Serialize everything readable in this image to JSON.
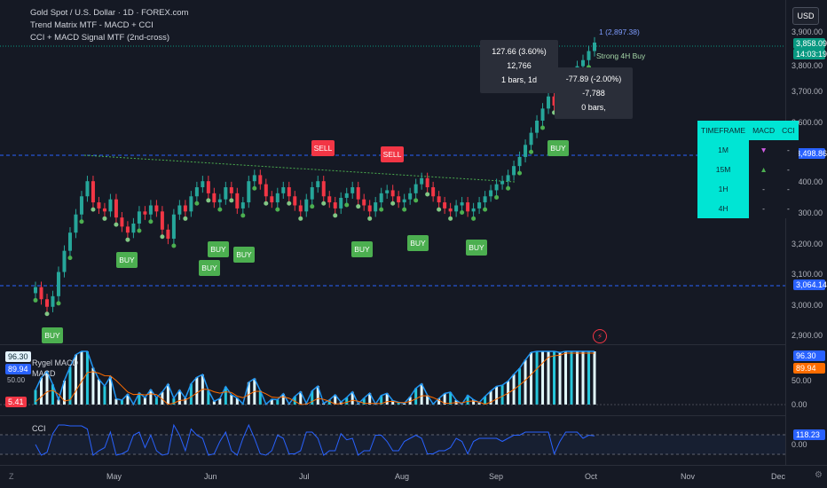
{
  "header": {
    "symbol_title": "Gold Spot / U.S. Dollar · 1D · FOREX.com",
    "indicator_1": "Trend Matrix MTF - MACD + CCI",
    "indicator_2": "CCI + MACD Signal MTF (2nd-cross)",
    "currency": "USD"
  },
  "price_axis": {
    "ticks": [
      "3,900.00",
      "3,800.00",
      "3,700.00",
      "3,600.00",
      "3,500.00",
      "3,400.00",
      "3,300.00",
      "3,200.00",
      "3,100.00",
      "3,000.00",
      "2,900.00"
    ],
    "last_price": "3,858.09",
    "countdown": "14:03:19",
    "hline_1": "3,498.86",
    "hline_2": "3,064.14"
  },
  "tooltips": {
    "measure_1_line1": "127.66 (3.60%) 12,766",
    "measure_1_line2": "1 bars, 1d",
    "measure_2_line1": "-77.89 (-2.00%) -7,788",
    "measure_2_line2": "0 bars,"
  },
  "signals": {
    "buy_label": "BUY",
    "sell_label": "SELL"
  },
  "top_right_notes": {
    "note_1": "1 (2,897.38)",
    "note_2": "Strong 4H Buy"
  },
  "timeframe_table": {
    "headers": [
      "TIMEFRAME",
      "MACD",
      "CCI"
    ],
    "rows": [
      {
        "tf": "1M",
        "macd": "▼",
        "cci": "-"
      },
      {
        "tf": "15M",
        "macd": "▲",
        "cci": "-"
      },
      {
        "tf": "1H",
        "macd": "-",
        "cci": "-"
      },
      {
        "tf": "4H",
        "macd": "-",
        "cci": "-"
      }
    ]
  },
  "macd_pane": {
    "title": "Rygel MACD",
    "subtitle": "MACD",
    "value_1": "96.30",
    "value_2": "89.94",
    "value_3": "5.41",
    "axis_50": "50.00",
    "axis_0": "0.00",
    "right_1": "96.30",
    "right_2": "89.94"
  },
  "cci_pane": {
    "title": "CCI",
    "value": "118.23",
    "axis_0": "0.00"
  },
  "time_axis": {
    "months": [
      "May",
      "Jun",
      "Jul",
      "Aug",
      "Sep",
      "Oct",
      "Nov",
      "Dec"
    ]
  },
  "colors": {
    "background": "#151924",
    "up": "#26a69a",
    "down": "#f23645",
    "buy": "#4caf50",
    "sell": "#f23645",
    "table_accent": "#00e5d4",
    "last_price_tag": "#089981",
    "hline": "#2962ff"
  },
  "chart_data": {
    "type": "candlestick",
    "x_labels": [
      "May",
      "Jun",
      "Jul",
      "Aug",
      "Sep",
      "Oct",
      "Nov",
      "Dec"
    ],
    "ylim": [
      2870,
      3940
    ],
    "closes": [
      3050,
      3010,
      2985,
      3020,
      3100,
      3170,
      3230,
      3290,
      3350,
      3400,
      3330,
      3310,
      3300,
      3340,
      3280,
      3250,
      3230,
      3260,
      3300,
      3290,
      3320,
      3300,
      3240,
      3210,
      3290,
      3320,
      3300,
      3350,
      3380,
      3400,
      3360,
      3330,
      3340,
      3380,
      3360,
      3310,
      3330,
      3400,
      3420,
      3390,
      3350,
      3330,
      3360,
      3380,
      3350,
      3320,
      3300,
      3340,
      3380,
      3400,
      3350,
      3330,
      3310,
      3345,
      3360,
      3380,
      3340,
      3320,
      3300,
      3330,
      3360,
      3370,
      3350,
      3330,
      3340,
      3360,
      3390,
      3410,
      3380,
      3350,
      3330,
      3310,
      3300,
      3320,
      3330,
      3300,
      3310,
      3330,
      3350,
      3370,
      3390,
      3400,
      3420,
      3450,
      3480,
      3520,
      3560,
      3600,
      3640,
      3680,
      3650,
      3660,
      3700,
      3740,
      3780,
      3800,
      3830,
      3858
    ]
  }
}
